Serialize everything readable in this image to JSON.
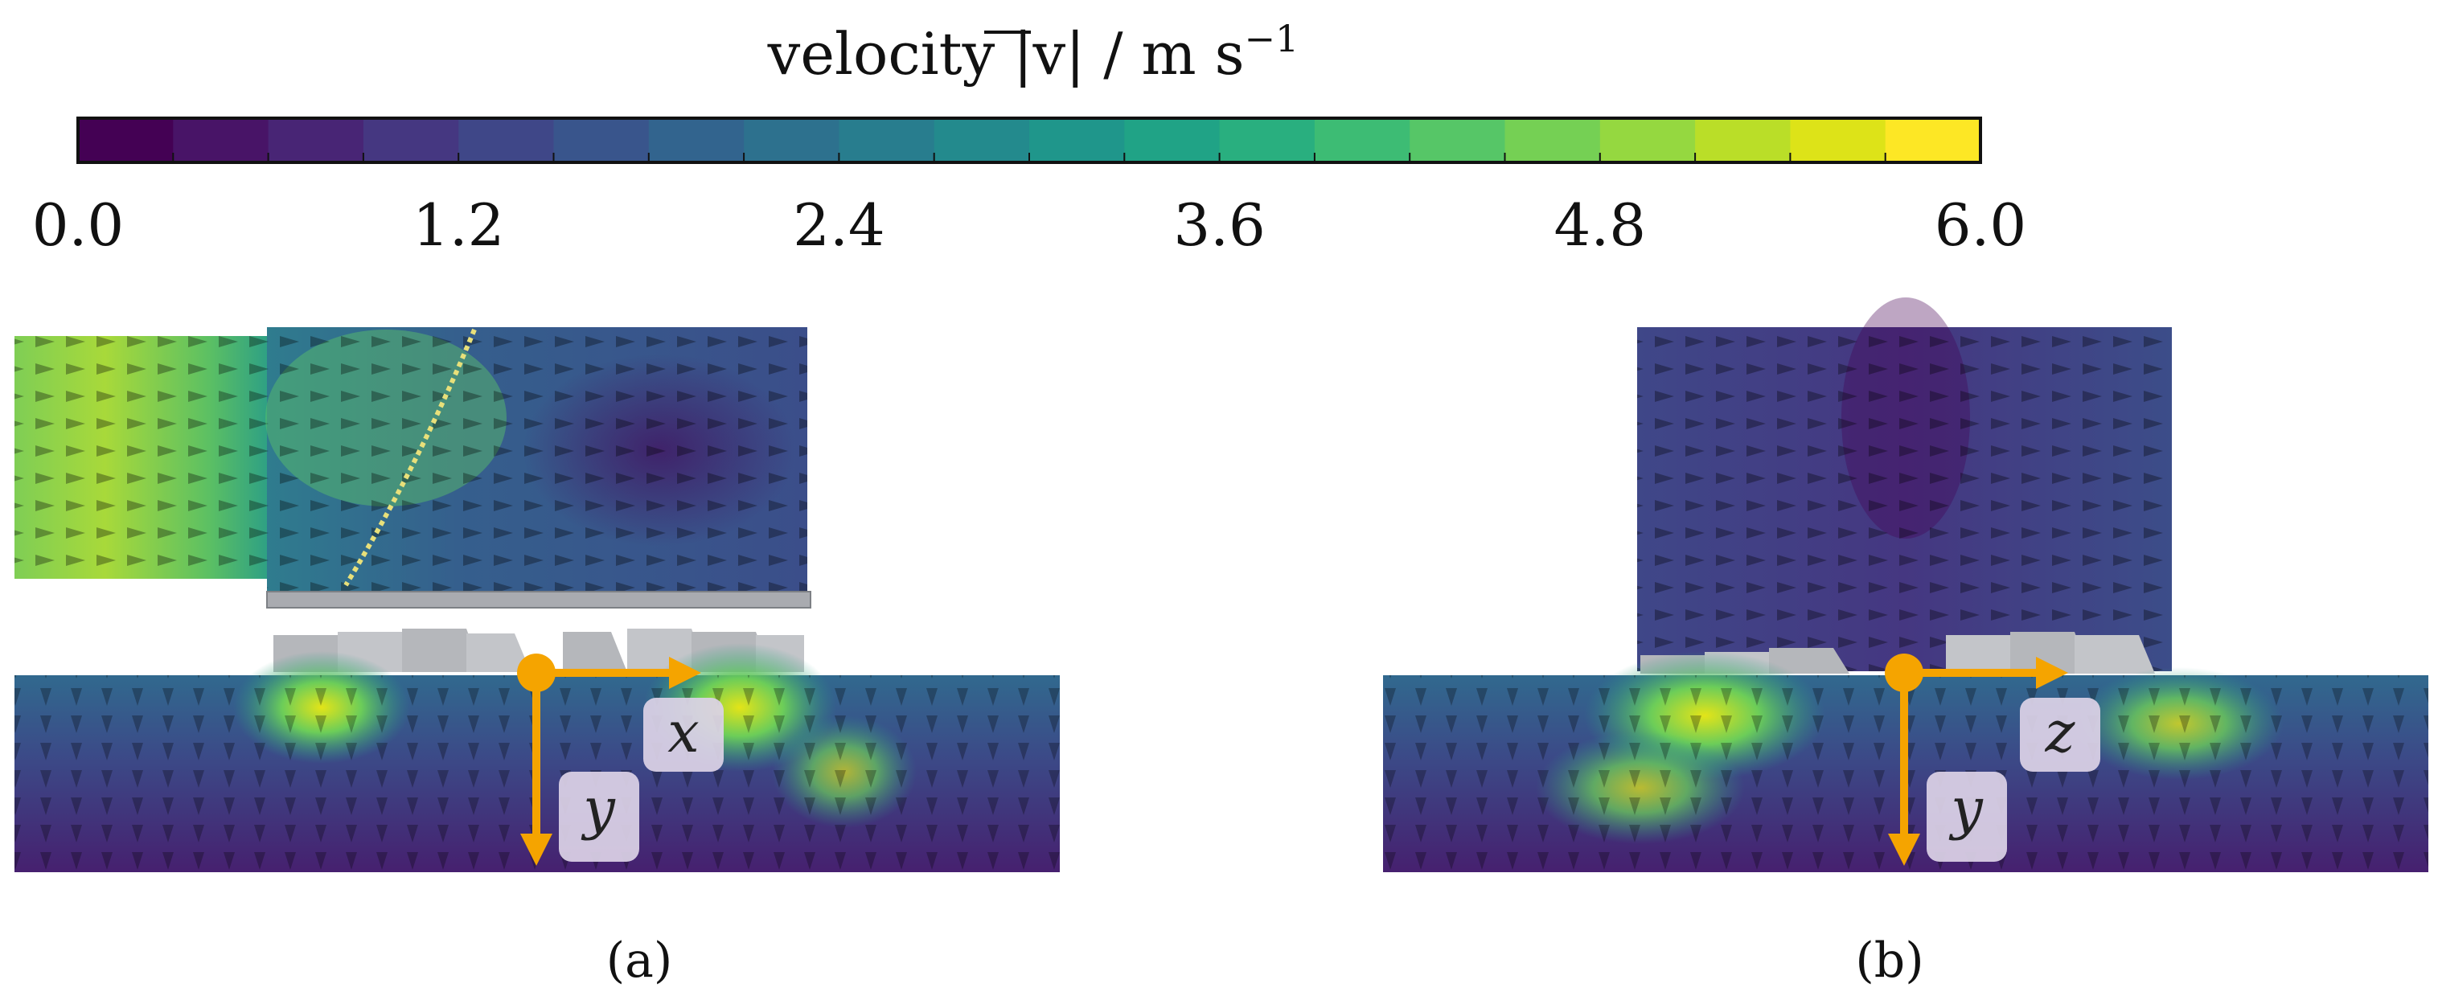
{
  "colorbar": {
    "title": "velocity |v| / m s",
    "title_superscript": "−1",
    "min": 0.0,
    "max": 6.0,
    "ticks": [
      "0.0",
      "1.2",
      "2.4",
      "3.6",
      "4.8",
      "6.0"
    ],
    "colors": [
      "#440154",
      "#481467",
      "#482575",
      "#453781",
      "#3f4788",
      "#39558c",
      "#32648e",
      "#2d718e",
      "#287d8e",
      "#238a8d",
      "#1f968b",
      "#20a386",
      "#29af7f",
      "#3dbc74",
      "#56c667",
      "#75d054",
      "#95d840",
      "#bade28",
      "#dde318",
      "#fde725"
    ]
  },
  "panels": [
    {
      "label": "(a)",
      "axis_horizontal": "x",
      "axis_vertical": "y"
    },
    {
      "label": "(b)",
      "axis_horizontal": "z",
      "axis_vertical": "y"
    }
  ],
  "colors": {
    "axis_arrow": "#f5a400",
    "label_box": "#dcd2e6",
    "baffle": "#a9abb0"
  }
}
